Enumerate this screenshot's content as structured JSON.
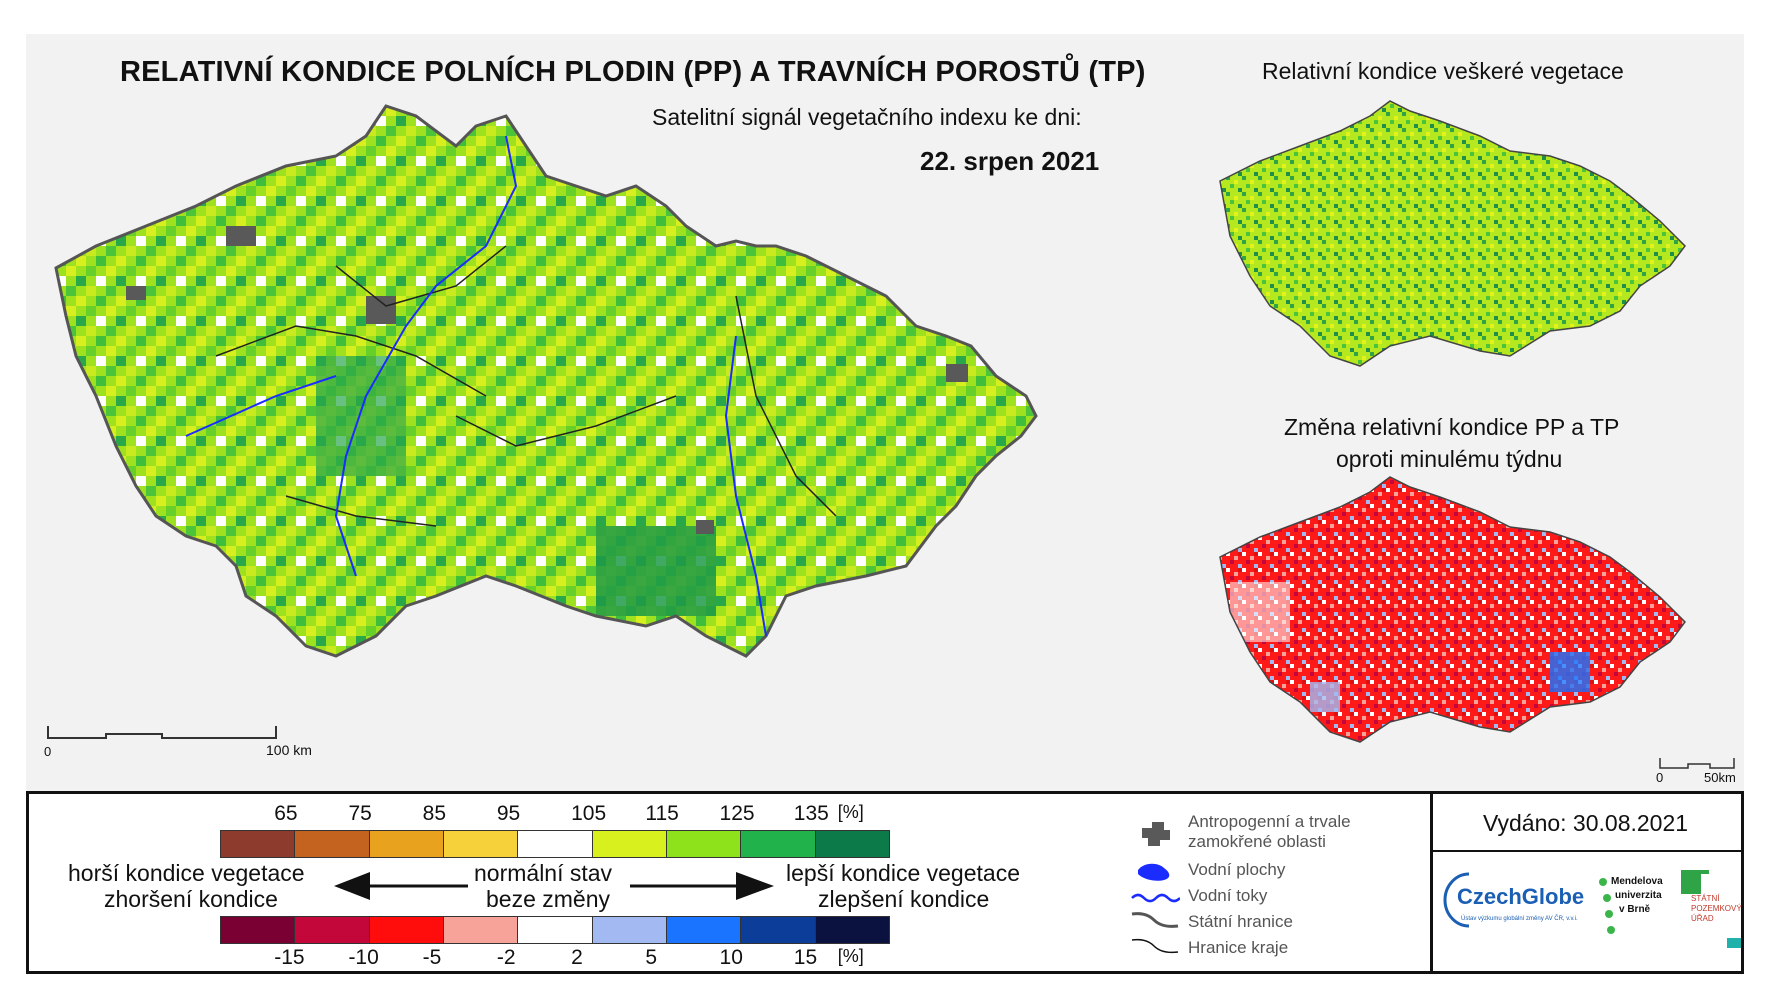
{
  "title": "RELATIVNÍ KONDICE POLNÍCH PLODIN (PP) A TRAVNÍCH POROSTŮ (TP)",
  "subtitle": "Satelitní signál vegetačního indexu ke dni:",
  "date": "22. srpen 2021",
  "side_maps": {
    "top_title": "Relativní kondice veškeré vegetace",
    "bottom_title_line1": "Změna relativní kondice PP a TP",
    "bottom_title_line2": "oproti minulému týdnu"
  },
  "scale_bars": {
    "main": {
      "start": "0",
      "end": "100 km"
    },
    "side": {
      "start": "0",
      "end": "50km"
    }
  },
  "condition_scale": {
    "ticks": [
      "65",
      "75",
      "85",
      "95",
      "105",
      "115",
      "125",
      "135",
      "[%]"
    ],
    "colors": [
      "#8c3b2c",
      "#c4621f",
      "#e8a21e",
      "#f7d13a",
      "#ffffff",
      "#d7f01e",
      "#8de21c",
      "#22b24c",
      "#0d7a4a"
    ]
  },
  "change_scale": {
    "ticks": [
      "-15",
      "-10",
      "-5",
      "-2",
      "2",
      "5",
      "10",
      "15",
      "[%]"
    ],
    "colors": [
      "#7a0034",
      "#c4073a",
      "#ff0d0d",
      "#f7a39a",
      "#ffffff",
      "#a3b9f2",
      "#1a74ff",
      "#0c3e99",
      "#0b1240"
    ]
  },
  "labels": {
    "worse_line1": "horší kondice vegetace",
    "worse_line2": "zhoršení kondice",
    "normal_line1": "normální stav",
    "normal_line2": "beze změny",
    "better_line1": "lepší kondice vegetace",
    "better_line2": "zlepšení kondice"
  },
  "map_legend": {
    "urban_line1": "Antropogenní a trvale",
    "urban_line2": "zamokřené oblasti",
    "water": "Vodní plochy",
    "rivers": "Vodní toky",
    "state_border": "Státní hranice",
    "region_border": "Hranice kraje"
  },
  "issued": "Vydáno: 30.08.2021",
  "logos": {
    "czechglobe": "CzechGlobe",
    "czechglobe_sub": "Ústav výzkumu globální změny AV ČR, v.v.i.",
    "mendel_1": "Mendelova",
    "mendel_2": "univerzita",
    "mendel_3": "v Brně",
    "spu_1": "STÁTNÍ",
    "spu_2": "POZEMKOVÝ",
    "spu_3": "ÚŘAD"
  },
  "palette": {
    "urban": "#595959",
    "water": "#1a2cff",
    "border": "#333333"
  }
}
